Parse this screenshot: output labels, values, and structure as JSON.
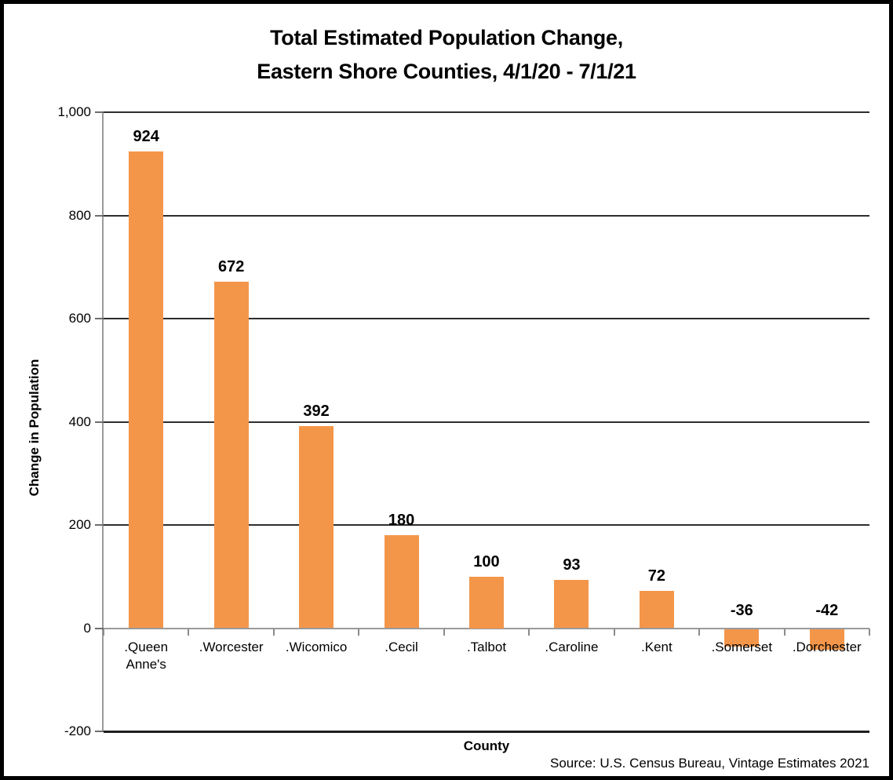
{
  "title": {
    "line1": "Total Estimated Population Change,",
    "line2": "Eastern Shore Counties, 4/1/20 - 7/1/21"
  },
  "chart_data": {
    "type": "bar",
    "title": "Total Estimated Population Change, Eastern Shore Counties, 4/1/20 - 7/1/21",
    "categories": [
      ".Queen Anne's",
      ".Worcester",
      ".Wicomico",
      ".Cecil",
      ".Talbot",
      ".Caroline",
      ".Kent",
      ".Somerset",
      ".Dorchester"
    ],
    "values": [
      924,
      672,
      392,
      180,
      100,
      93,
      72,
      -36,
      -42
    ],
    "data_labels": [
      "924",
      "672",
      "392",
      "180",
      "100",
      "93",
      "72",
      "-36",
      "-42"
    ],
    "xlabel": "County",
    "ylabel": "Change in Population",
    "ylim": [
      -200,
      1000
    ],
    "yticks": [
      1000,
      800,
      600,
      400,
      200,
      0,
      -200
    ],
    "ytick_labels": [
      "1,000",
      "800",
      "600",
      "400",
      "200",
      "0",
      "-200"
    ],
    "grid": true,
    "legend": "none",
    "bar_color": "#F4964A",
    "source_note": "Source: U.S. Census Bureau, Vintage Estimates 2021"
  },
  "colors": {
    "bar": "#F4964A",
    "gridline": "#2E2E2E",
    "bottom_line": "#1F1F1F",
    "zero_axis_line": "#9A9A9A",
    "y_axis_line": "#9A9A9A",
    "tick": "#6E6E6E",
    "text": "#000000",
    "background": "#FFFFFF",
    "frame_border": "#000000"
  }
}
